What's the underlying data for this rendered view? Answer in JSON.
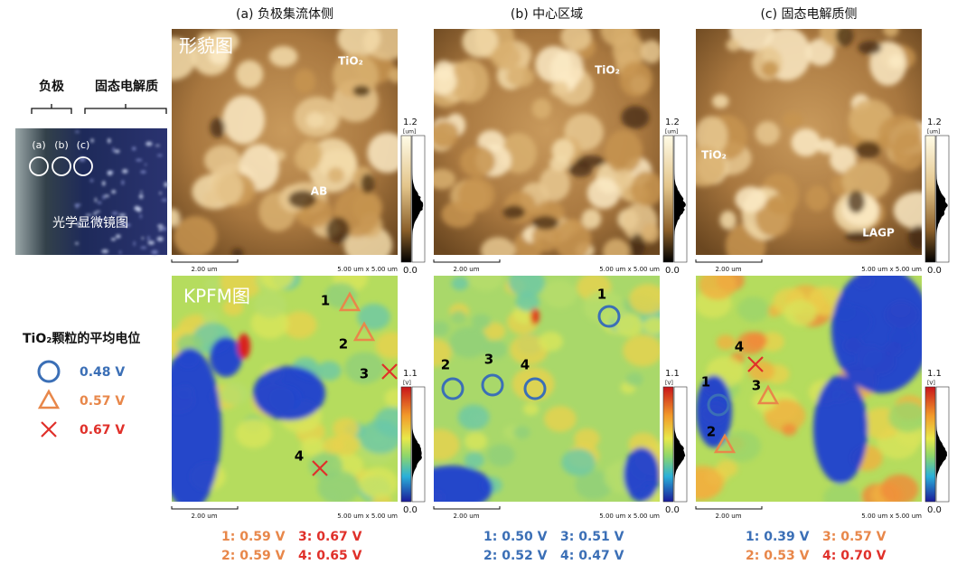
{
  "headers": [
    "(a)  负极集流体侧",
    "(b)  中心区域",
    "(c)  固态电解质侧"
  ],
  "left": {
    "labels": [
      "负极",
      "固态电解质"
    ],
    "markers": [
      "(a)",
      "(b)",
      "(c)"
    ],
    "caption": "光学显微镜图"
  },
  "topo_title": "形貌图",
  "topo_labels": [
    [
      "TiO₂",
      "AB"
    ],
    [
      "TiO₂"
    ],
    [
      "TiO₂",
      "LAGP"
    ]
  ],
  "kpfm_title": "KPFM图",
  "topo_scale": {
    "max": "1.2",
    "unit": "[um]",
    "min": "0.0"
  },
  "kpfm_scale": {
    "max": "1.1",
    "unit": "[V]",
    "min": "0.0"
  },
  "scale_bar": "2.00 um",
  "scan_size": "5.00 um x 5.00 um",
  "marker_numbers": [
    [
      "1",
      "2",
      "3",
      "4"
    ],
    [
      "1",
      "2",
      "3",
      "4"
    ],
    [
      "1",
      "2",
      "3",
      "4"
    ]
  ],
  "legend": {
    "title": "TiO₂颗粒的平均电位",
    "items": [
      "0.48 V",
      "0.57 V",
      "0.67 V"
    ]
  },
  "potentials": [
    [
      "1: 0.59 V",
      "3: 0.67 V",
      "2: 0.59 V",
      "4: 0.65 V"
    ],
    [
      "1: 0.50 V",
      "3: 0.51 V",
      "2: 0.52 V",
      "4: 0.47 V"
    ],
    [
      "1: 0.39 V",
      "3: 0.57 V",
      "2: 0.53 V",
      "4: 0.70 V"
    ]
  ]
}
